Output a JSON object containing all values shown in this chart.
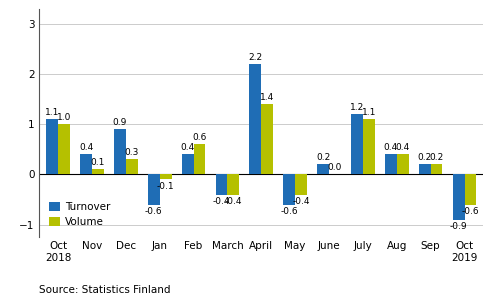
{
  "categories": [
    "Oct\n2018",
    "Nov",
    "Dec",
    "Jan",
    "Feb",
    "March",
    "April",
    "May",
    "June",
    "July",
    "Aug",
    "Sep",
    "Oct\n2019"
  ],
  "turnover": [
    1.1,
    0.4,
    0.9,
    -0.6,
    0.4,
    -0.4,
    2.2,
    -0.6,
    0.2,
    1.2,
    0.4,
    0.2,
    -0.9
  ],
  "volume": [
    1.0,
    0.1,
    0.3,
    -0.1,
    0.6,
    -0.4,
    1.4,
    -0.4,
    0.0,
    1.1,
    0.4,
    0.2,
    -0.6
  ],
  "turnover_labels": [
    "1.1",
    "0.4",
    "0.9",
    "-0.6",
    "0.4",
    "-0.4",
    "2.2",
    "-0.6",
    "0.2",
    "1.2",
    "0.4",
    "0.2",
    "-0.9"
  ],
  "volume_labels": [
    "1.0",
    "0.1",
    "0.3",
    "-0.1",
    "0.6",
    "-0.4",
    "1.4",
    "-0.4",
    "0.0",
    "1.1",
    "0.4",
    "0.2",
    "-0.6"
  ],
  "turnover_color": "#1f6db5",
  "volume_color": "#b5c000",
  "ylim": [
    -1.25,
    3.3
  ],
  "yticks": [
    -1,
    0,
    1,
    2,
    3
  ],
  "legend_labels": [
    "Turnover",
    "Volume"
  ],
  "source_text": "Source: Statistics Finland",
  "bar_width": 0.35,
  "label_fontsize": 6.5,
  "axis_fontsize": 7.5,
  "source_fontsize": 7.5,
  "left_spine_color": "#555555"
}
